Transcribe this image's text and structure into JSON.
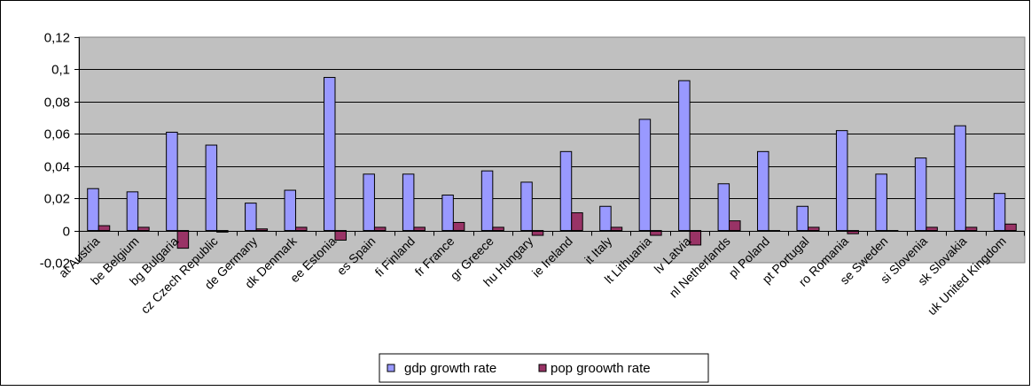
{
  "colors": {
    "plot_bg": "#c0c0c0",
    "gdp": "#9999ff",
    "pop": "#993366",
    "grid": "#000000"
  },
  "chart_data": {
    "type": "bar",
    "categories": [
      "at Austria",
      "be Belgium",
      "bg Bulgaria",
      "cz Czech Republic",
      "de Germany",
      "dk Denmark",
      "ee Estonia",
      "es Spain",
      "fi Finland",
      "fr France",
      "gr Greece",
      "hu Hungary",
      "ie Ireland",
      "it Italy",
      "lt Lithuania",
      "lv Latvia",
      "nl Netherlands",
      "pl Poland",
      "pt Portugal",
      "ro Romania",
      "se Sweden",
      "si Slovenia",
      "sk Slovakia",
      "uk United Kingdom"
    ],
    "series": [
      {
        "name": "gdp growth rate",
        "values": [
          0.026,
          0.024,
          0.061,
          0.053,
          0.017,
          0.025,
          0.095,
          0.035,
          0.035,
          0.022,
          0.037,
          0.03,
          0.049,
          0.015,
          0.069,
          0.093,
          0.029,
          0.049,
          0.015,
          0.062,
          0.035,
          0.045,
          0.065,
          0.023
        ]
      },
      {
        "name": "pop groowth rate",
        "values": [
          0.003,
          0.002,
          -0.011,
          -0.001,
          0.001,
          0.002,
          -0.006,
          0.002,
          0.002,
          0.005,
          0.002,
          -0.003,
          0.011,
          0.002,
          -0.003,
          -0.009,
          0.006,
          0.0,
          0.002,
          -0.002,
          0.0,
          0.002,
          0.002,
          0.004
        ]
      }
    ],
    "y_ticks": [
      "0,12",
      "0,1",
      "0,08",
      "0,06",
      "0,04",
      "0,02",
      "0",
      "-0,02"
    ],
    "ylim": [
      -0.02,
      0.12
    ],
    "ytick_step": 0.02,
    "grid": true,
    "legend_position": "bottom"
  }
}
